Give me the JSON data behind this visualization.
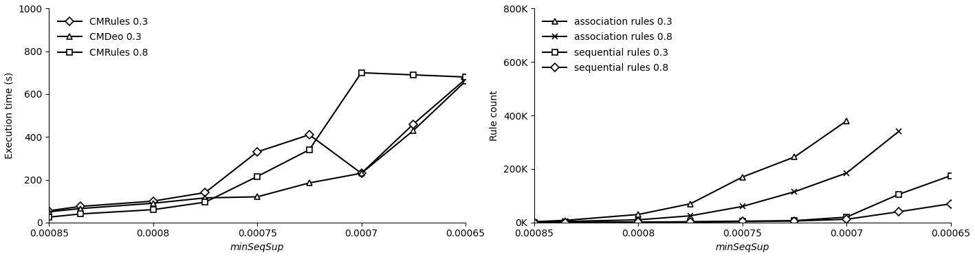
{
  "x_values": [
    0.00085,
    0.000835,
    0.0008,
    0.000775,
    0.00075,
    0.000725,
    0.0007,
    0.000675,
    0.00065
  ],
  "left_chart": {
    "ylabel": "Execution time (s)",
    "xlabel": "minSeqSup",
    "ylim": [
      0,
      1000
    ],
    "yticks": [
      0,
      200,
      400,
      600,
      800,
      1000
    ],
    "xticks": [
      0.00085,
      0.0008,
      0.00075,
      0.0007,
      0.00065
    ],
    "xlim_left": 0.00085,
    "xlim_right": 0.00065,
    "series": [
      {
        "label": "CMRules 0.3",
        "marker": "D",
        "values": [
          55,
          75,
          100,
          140,
          330,
          410,
          230,
          460,
          670
        ]
      },
      {
        "label": "CMDeo 0.3",
        "marker": "^",
        "values": [
          50,
          65,
          90,
          115,
          120,
          185,
          230,
          430,
          660
        ]
      },
      {
        "label": "CMRules 0.8",
        "marker": "s",
        "values": [
          25,
          40,
          60,
          95,
          215,
          340,
          700,
          690,
          680
        ]
      }
    ]
  },
  "right_chart": {
    "ylabel": "Rule count",
    "xlabel": "minSeqSup",
    "ylim": [
      0,
      800000
    ],
    "ytick_values": [
      0,
      200000,
      400000,
      600000,
      800000
    ],
    "ytick_labels": [
      "0K",
      "200K",
      "400K",
      "600K",
      "800K"
    ],
    "xticks": [
      0.00085,
      0.0008,
      0.00075,
      0.0007,
      0.00065
    ],
    "xlim_left": 0.00085,
    "xlim_right": 0.00065,
    "series": [
      {
        "label": "association rules 0.3",
        "marker": "^",
        "x_values": [
          0.00085,
          0.000835,
          0.0008,
          0.000775,
          0.00075,
          0.000725,
          0.0007
        ],
        "values": [
          3000,
          8000,
          30000,
          70000,
          170000,
          245000,
          380000
        ]
      },
      {
        "label": "association rules 0.8",
        "marker": "x",
        "x_values": [
          0.00085,
          0.000835,
          0.0008,
          0.000775,
          0.00075,
          0.000725,
          0.0007,
          0.000675
        ],
        "values": [
          2000,
          4000,
          10000,
          25000,
          60000,
          115000,
          185000,
          340000
        ]
      },
      {
        "label": "sequential rules 0.3",
        "marker": "s",
        "x_values": [
          0.00085,
          0.000835,
          0.0008,
          0.000775,
          0.00075,
          0.000725,
          0.0007,
          0.000675,
          0.00065
        ],
        "values": [
          300,
          800,
          1500,
          3000,
          5000,
          7000,
          20000,
          105000,
          175000
        ]
      },
      {
        "label": "sequential rules 0.8",
        "marker": "D",
        "x_values": [
          0.00085,
          0.000835,
          0.0008,
          0.000775,
          0.00075,
          0.000725,
          0.0007,
          0.000675,
          0.00065
        ],
        "values": [
          200,
          500,
          1000,
          2000,
          3500,
          5500,
          12000,
          40000,
          70000
        ]
      }
    ]
  },
  "line_color": "#000000",
  "background_color": "#ffffff",
  "font_size": 10
}
